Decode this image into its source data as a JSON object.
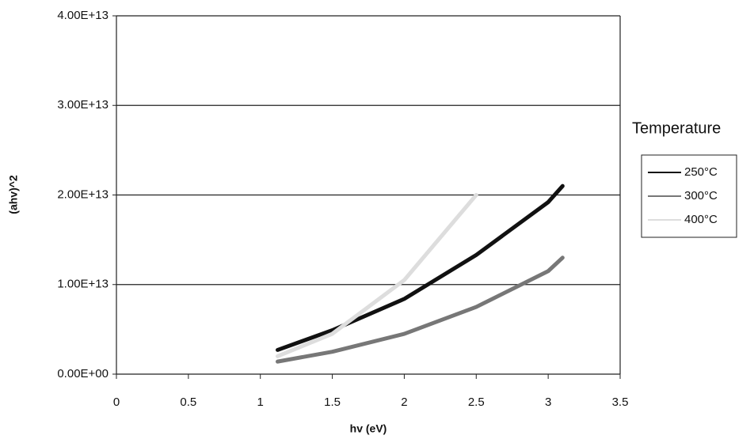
{
  "chart_data": {
    "type": "line",
    "x_label": "hv (eV)",
    "y_label": "(ahv)^2",
    "x": [
      1.12,
      1.5,
      2,
      2.5,
      3,
      3.1
    ],
    "series": [
      {
        "name": "250°C",
        "color": "#111111",
        "values": [
          2700000000000.0,
          4900000000000.0,
          8400000000000.0,
          13300000000000.0,
          19200000000000.0,
          21000000000000.0
        ]
      },
      {
        "name": "300°C",
        "color": "#777777",
        "values": [
          1400000000000.0,
          2500000000000.0,
          4500000000000.0,
          7500000000000.0,
          11500000000000.0,
          13000000000000.0
        ]
      },
      {
        "name": "400°C",
        "color": "#dddddd",
        "values": [
          2000000000000.0,
          4500000000000.0,
          10500000000000.0,
          20000000000000.0,
          null,
          null
        ]
      }
    ],
    "xlim": [
      0,
      3.5
    ],
    "xticks": [
      0,
      0.5,
      1,
      1.5,
      2,
      2.5,
      3,
      3.5
    ],
    "ylim": [
      0,
      40000000000000.0
    ],
    "yticks": [
      {
        "value": 0,
        "label": "0.00E+00"
      },
      {
        "value": 10000000000000.0,
        "label": "1.00E+13"
      },
      {
        "value": 20000000000000.0,
        "label": "2.00E+13"
      },
      {
        "value": 30000000000000.0,
        "label": "3.00E+13"
      },
      {
        "value": 40000000000000.0,
        "label": "4.00E+13"
      }
    ],
    "grid": true,
    "legend_title": "Temperature",
    "legend_position": "right"
  }
}
